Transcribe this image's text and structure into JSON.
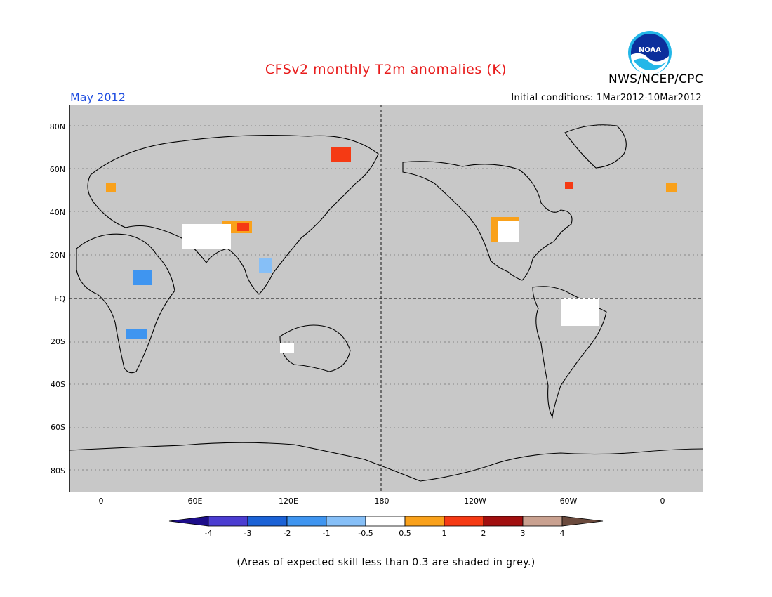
{
  "header": {
    "title": "CFSv2 monthly T2m anomalies (K)",
    "agency": "NWS/NCEP/CPC",
    "month": "May 2012",
    "initial_conditions": "Initial conditions: 1Mar2012-10Mar2012",
    "logo_text": "NOAA"
  },
  "map": {
    "lat_labels": [
      "80N",
      "60N",
      "40N",
      "20N",
      "EQ",
      "20S",
      "40S",
      "60S",
      "80S"
    ],
    "lon_labels": [
      "0",
      "60E",
      "120E",
      "180",
      "120W",
      "60W",
      "0"
    ],
    "grey_meaning": "Areas of expected skill less than 0.3 are shaded in grey."
  },
  "colorbar": {
    "labels": [
      "-4",
      "-3",
      "-2",
      "-1",
      "-0.5",
      "0.5",
      "1",
      "2",
      "3",
      "4"
    ],
    "colors": [
      "#1d0d8a",
      "#4b3dd1",
      "#1b62d6",
      "#3f95f0",
      "#86bff7",
      "#ffffff",
      "#f9a11b",
      "#f53a14",
      "#a10f0f",
      "#c9a190",
      "#6b4a3d"
    ]
  },
  "footnote": "(Areas of expected skill less than 0.3 are shaded in grey.)",
  "colors": {
    "title": "#e81c1c",
    "month": "#1f4de0",
    "grey": "#c8c8c8"
  }
}
